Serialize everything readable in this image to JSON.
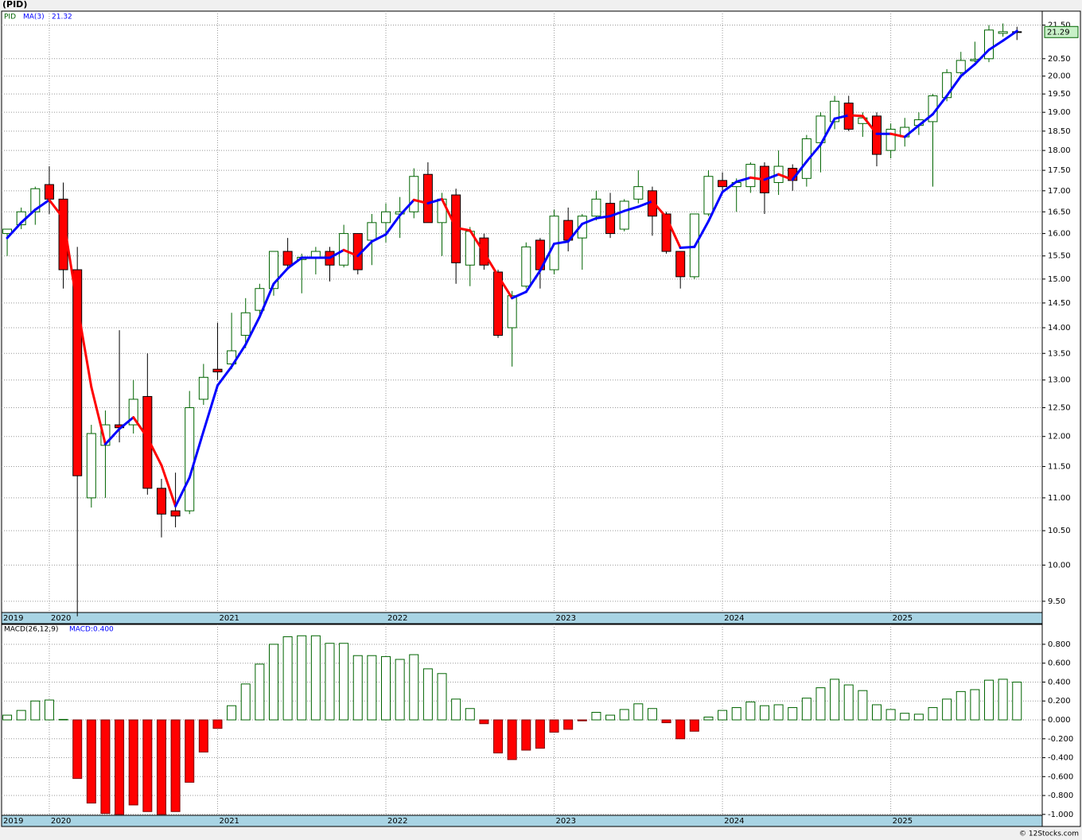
{
  "chart_data": [
    {
      "type": "candlestick",
      "title": "(PID)",
      "symbol": "PID",
      "log_scale": true,
      "grid": true,
      "up_color": "#006400",
      "down_color": "#ff0000",
      "xlim": [
        -0.4,
        73.8
      ],
      "xticks": [
        {
          "value": -0.4,
          "label": "2019"
        },
        {
          "value": 3,
          "label": "2020"
        },
        {
          "value": 15,
          "label": "2021"
        },
        {
          "value": 27,
          "label": "2022"
        },
        {
          "value": 39,
          "label": "2023"
        },
        {
          "value": 51,
          "label": "2024"
        },
        {
          "value": 63,
          "label": "2025"
        }
      ],
      "ylim": [
        9.35,
        21.93
      ],
      "yticks": [
        {
          "value": 9.5,
          "label": "9.50"
        },
        {
          "value": 10,
          "label": "10.00"
        },
        {
          "value": 10.5,
          "label": "10.50"
        },
        {
          "value": 11,
          "label": "11.00"
        },
        {
          "value": 11.5,
          "label": "11.50"
        },
        {
          "value": 12,
          "label": "12.00"
        },
        {
          "value": 12.5,
          "label": "12.50"
        },
        {
          "value": 13,
          "label": "13.00"
        },
        {
          "value": 13.5,
          "label": "13.50"
        },
        {
          "value": 14,
          "label": "14.00"
        },
        {
          "value": 14.5,
          "label": "14.50"
        },
        {
          "value": 15,
          "label": "15.00"
        },
        {
          "value": 15.5,
          "label": "15.50"
        },
        {
          "value": 16,
          "label": "16.00"
        },
        {
          "value": 16.5,
          "label": "16.50"
        },
        {
          "value": 17,
          "label": "17.00"
        },
        {
          "value": 17.5,
          "label": "17.50"
        },
        {
          "value": 18,
          "label": "18.00"
        },
        {
          "value": 18.5,
          "label": "18.50"
        },
        {
          "value": 19,
          "label": "19.00"
        },
        {
          "value": 19.5,
          "label": "19.50"
        },
        {
          "value": 20,
          "label": "20.00"
        },
        {
          "value": 20.5,
          "label": "20.50"
        },
        {
          "value": 21.5,
          "label": "21.50"
        }
      ],
      "open": [
        16.0,
        16.2,
        16.5,
        17.15,
        16.8,
        15.2,
        11.0,
        11.85,
        12.2,
        12.2,
        12.7,
        11.15,
        10.8,
        10.8,
        12.65,
        13.2,
        13.3,
        13.85,
        14.35,
        14.8,
        15.6,
        15.42,
        15.45,
        15.6,
        15.3,
        16.0,
        15.85,
        16.25,
        16.45,
        16.5,
        17.4,
        16.25,
        16.9,
        15.3,
        15.9,
        15.15,
        14.0,
        14.85,
        15.85,
        15.2,
        16.3,
        15.9,
        16.4,
        16.7,
        16.1,
        16.8,
        17.0,
        16.45,
        15.6,
        15.05,
        16.45,
        17.25,
        17.1,
        17.1,
        17.6,
        17.2,
        17.55,
        17.3,
        18.2,
        18.75,
        19.25,
        18.7,
        18.9,
        18.0,
        18.35,
        18.65,
        18.75,
        19.4,
        20.1,
        20.44,
        20.5,
        21.25,
        21.3
      ],
      "high": [
        16.1,
        16.6,
        17.1,
        17.6,
        17.2,
        15.7,
        12.2,
        12.45,
        13.95,
        13.0,
        13.5,
        11.3,
        11.4,
        12.8,
        13.3,
        14.1,
        14.3,
        14.6,
        14.9,
        15.6,
        15.9,
        15.55,
        15.7,
        15.7,
        16.2,
        16.0,
        16.45,
        16.7,
        16.85,
        17.55,
        17.7,
        16.95,
        17.05,
        16.15,
        16.0,
        15.2,
        14.75,
        15.8,
        15.9,
        16.55,
        16.6,
        16.45,
        17.0,
        16.95,
        16.8,
        17.5,
        17.1,
        16.5,
        15.6,
        16.45,
        17.5,
        17.45,
        17.3,
        17.7,
        17.7,
        18.0,
        17.65,
        18.4,
        19.0,
        19.45,
        19.45,
        19.0,
        19.0,
        18.7,
        18.85,
        19.0,
        19.5,
        20.2,
        20.7,
        21.0,
        21.5,
        21.55,
        21.45
      ],
      "low": [
        15.5,
        16.1,
        16.2,
        16.45,
        14.8,
        9.3,
        10.85,
        11.0,
        11.9,
        12.05,
        11.05,
        10.4,
        10.55,
        10.75,
        12.55,
        13.0,
        13.2,
        13.6,
        14.2,
        14.65,
        15.2,
        14.7,
        15.1,
        14.95,
        15.25,
        15.1,
        15.3,
        15.8,
        15.9,
        16.35,
        16.25,
        15.5,
        14.9,
        14.85,
        15.2,
        13.8,
        13.25,
        14.8,
        14.8,
        15.1,
        15.6,
        15.2,
        16.3,
        15.9,
        16.05,
        16.7,
        15.95,
        15.55,
        14.8,
        15.0,
        16.4,
        17.0,
        16.5,
        16.95,
        16.45,
        16.9,
        17.0,
        17.1,
        17.45,
        18.55,
        18.5,
        18.35,
        17.6,
        17.8,
        18.1,
        18.4,
        17.1,
        19.3,
        20.05,
        20.4,
        20.4,
        21.15,
        21.05
      ],
      "close": [
        16.1,
        16.5,
        17.05,
        16.8,
        15.2,
        11.35,
        12.05,
        12.2,
        12.15,
        12.65,
        11.15,
        10.75,
        10.72,
        12.5,
        13.05,
        13.15,
        13.55,
        14.3,
        14.8,
        15.6,
        15.3,
        15.47,
        15.6,
        15.3,
        16.0,
        15.2,
        16.25,
        16.5,
        16.5,
        17.35,
        16.25,
        16.8,
        15.35,
        16.05,
        15.3,
        13.85,
        14.65,
        15.7,
        15.2,
        16.4,
        15.85,
        16.4,
        16.8,
        16.0,
        16.75,
        17.1,
        16.4,
        15.6,
        15.05,
        16.45,
        17.35,
        17.1,
        17.2,
        17.65,
        16.95,
        17.6,
        17.25,
        18.3,
        18.9,
        19.3,
        18.55,
        18.85,
        17.9,
        18.55,
        18.6,
        18.8,
        19.45,
        20.1,
        20.45,
        20.48,
        21.35,
        21.3,
        21.29
      ],
      "ma": {
        "name": "MA(3)",
        "up_color": "#0000ff",
        "down_color": "#ff0000",
        "values": [
          15.9,
          16.25,
          16.55,
          16.78,
          16.35,
          14.45,
          12.87,
          11.87,
          12.13,
          12.33,
          11.98,
          11.52,
          10.87,
          11.32,
          12.09,
          12.9,
          13.25,
          13.67,
          14.22,
          14.9,
          15.23,
          15.46,
          15.46,
          15.46,
          15.63,
          15.5,
          15.82,
          15.98,
          16.42,
          16.78,
          16.7,
          16.8,
          16.13,
          16.07,
          15.57,
          15.07,
          14.6,
          14.73,
          15.18,
          15.77,
          15.82,
          16.22,
          16.35,
          16.4,
          16.52,
          16.62,
          16.75,
          16.37,
          15.68,
          15.7,
          16.28,
          16.97,
          17.22,
          17.32,
          17.27,
          17.4,
          17.27,
          17.72,
          18.15,
          18.83,
          18.92,
          18.9,
          18.43,
          18.43,
          18.35,
          18.65,
          18.95,
          19.45,
          20.0,
          20.34,
          20.76,
          21.03,
          21.32
        ]
      }
    },
    {
      "type": "bar",
      "name": "MACD(26,12,9)",
      "legend_value": "MACD:0.400",
      "grid": true,
      "up_color": "#006400",
      "down_color": "#ff0000",
      "xlim": [
        -0.4,
        73.8
      ],
      "xticks": [
        {
          "value": -0.4,
          "label": "2019"
        },
        {
          "value": 3,
          "label": "2020"
        },
        {
          "value": 15,
          "label": "2021"
        },
        {
          "value": 27,
          "label": "2022"
        },
        {
          "value": 39,
          "label": "2023"
        },
        {
          "value": 51,
          "label": "2024"
        },
        {
          "value": 63,
          "label": "2025"
        }
      ],
      "ylim": [
        -1.01,
        1.01
      ],
      "yticks": [
        {
          "value": 0.8,
          "label": "0.800"
        },
        {
          "value": 0.6,
          "label": "0.600"
        },
        {
          "value": 0.4,
          "label": "0.400"
        },
        {
          "value": 0.2,
          "label": "0.200"
        },
        {
          "value": 0,
          "label": "0.000"
        },
        {
          "value": -0.2,
          "label": "-0.200"
        },
        {
          "value": -0.4,
          "label": "-0.400"
        },
        {
          "value": -0.6,
          "label": "-0.600"
        },
        {
          "value": -0.8,
          "label": "-0.800"
        },
        {
          "value": -1.0,
          "label": "-1.000"
        }
      ],
      "values": [
        0.05,
        0.1,
        0.2,
        0.21,
        0.005,
        -0.62,
        -0.88,
        -0.99,
        -1.0,
        -0.9,
        -0.97,
        -1.0,
        -0.97,
        -0.66,
        -0.34,
        -0.09,
        0.15,
        0.38,
        0.59,
        0.8,
        0.88,
        0.89,
        0.89,
        0.81,
        0.81,
        0.68,
        0.68,
        0.67,
        0.64,
        0.69,
        0.54,
        0.49,
        0.22,
        0.12,
        -0.04,
        -0.35,
        -0.42,
        -0.32,
        -0.3,
        -0.13,
        -0.1,
        -0.01,
        0.08,
        0.05,
        0.11,
        0.17,
        0.12,
        -0.03,
        -0.2,
        -0.12,
        0.03,
        0.1,
        0.13,
        0.19,
        0.15,
        0.16,
        0.13,
        0.23,
        0.34,
        0.43,
        0.37,
        0.31,
        0.16,
        0.11,
        0.07,
        0.06,
        0.13,
        0.22,
        0.3,
        0.32,
        0.42,
        0.43,
        0.4
      ]
    }
  ],
  "footer": "© 12Stocks.com"
}
